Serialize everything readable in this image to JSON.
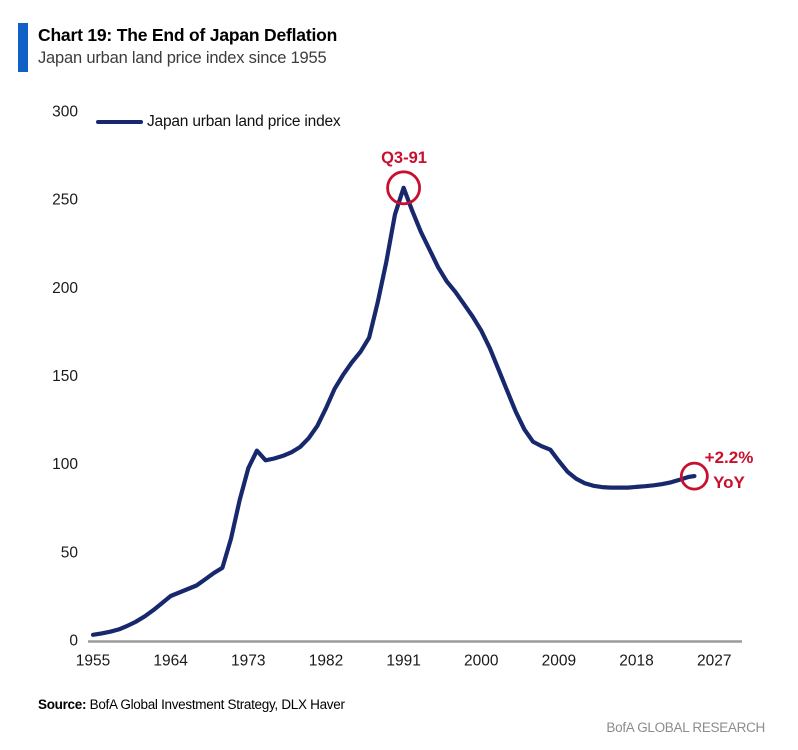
{
  "header": {
    "title": "Chart 19: The End of Japan Deflation",
    "subtitle": "Japan urban land price index since 1955"
  },
  "footer": {
    "source_label": "Source:",
    "source_text": " BofA Global Investment Strategy, DLX Haver",
    "brand": "BofA GLOBAL RESEARCH"
  },
  "colors": {
    "line": "#17286d",
    "accent_red": "#c90f2e",
    "title_bar_blue": "#1160c7",
    "axis_gray": "#9b9b9b",
    "brand_gray": "#8c8c8c"
  },
  "chart_data": {
    "type": "line",
    "title": "Chart 19: The End of Japan Deflation",
    "subtitle": "Japan urban land price index since 1955",
    "xlabel": "",
    "ylabel": "",
    "x_ticks": [
      1955,
      1964,
      1973,
      1982,
      1991,
      2000,
      2009,
      2018,
      2027
    ],
    "y_ticks": [
      0,
      50,
      100,
      150,
      200,
      250,
      300
    ],
    "xlim": [
      1954,
      2030
    ],
    "ylim": [
      0,
      300
    ],
    "grid": false,
    "legend_position": "top-left",
    "series": [
      {
        "name": "Japan urban land price index",
        "x": [
          1955,
          1956,
          1957,
          1958,
          1959,
          1960,
          1961,
          1962,
          1963,
          1964,
          1965,
          1966,
          1967,
          1968,
          1969,
          1970,
          1971,
          1972,
          1973,
          1974,
          1975,
          1976,
          1977,
          1978,
          1979,
          1980,
          1981,
          1982,
          1983,
          1984,
          1985,
          1986,
          1987,
          1988,
          1989,
          1990,
          1991,
          1992,
          1993,
          1994,
          1995,
          1996,
          1997,
          1998,
          1999,
          2000,
          2001,
          2002,
          2003,
          2004,
          2005,
          2006,
          2007,
          2008,
          2009,
          2010,
          2011,
          2012,
          2013,
          2014,
          2015,
          2016,
          2017,
          2018,
          2019,
          2020,
          2021,
          2022,
          2023,
          2024,
          2024.7
        ],
        "values": [
          3.5,
          4.3,
          5.3,
          6.6,
          8.6,
          11,
          14,
          17.5,
          21.5,
          25.5,
          27.5,
          29.5,
          31.5,
          35,
          38.5,
          41.5,
          58,
          80,
          98,
          108,
          102.5,
          103.5,
          105,
          107,
          110,
          115,
          122,
          132,
          143,
          151,
          158,
          164,
          172,
          192,
          215,
          242,
          257,
          244,
          232,
          222,
          212,
          204,
          198,
          191,
          184,
          176,
          166,
          154,
          142,
          130,
          120,
          113,
          110.5,
          108.5,
          102,
          96,
          92,
          89.5,
          88,
          87.3,
          87,
          87,
          87,
          87.4,
          87.8,
          88.3,
          89,
          90,
          91.5,
          93,
          93.5
        ]
      }
    ],
    "annotations": [
      {
        "id": "peak",
        "text": "Q3-91",
        "year": 1991,
        "value": 257,
        "line1": "Q3-91",
        "line2": ""
      },
      {
        "id": "latest",
        "text": "+2.2% YoY",
        "year": 2024.7,
        "value": 93.5,
        "line1": "+2.2%",
        "line2": "YoY"
      }
    ]
  }
}
